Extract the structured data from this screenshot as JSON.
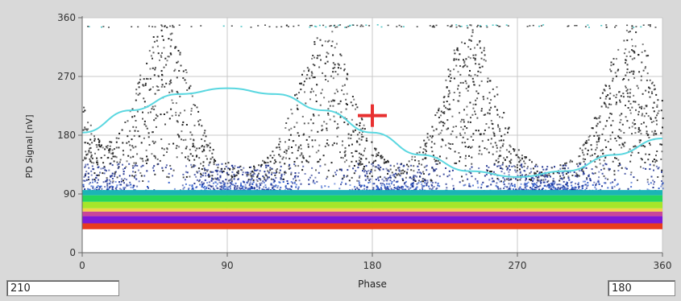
{
  "readouts": {
    "left_value": "210",
    "right_value": "180"
  },
  "colors": {
    "background": "#d9d9d9",
    "plot_background": "#ffffff",
    "grid": "#c8c8c8",
    "axis": "#666666",
    "fit_curve": "#5ad7e0",
    "cursor": "#e83030",
    "density_palette": [
      "#1a1a1a",
      "#1c2f8f",
      "#2c59c9",
      "#1bb5b5",
      "#24d65c",
      "#a6e62a",
      "#f2d24a",
      "#c9469a",
      "#7d18d8",
      "#e83a1f"
    ]
  },
  "chart_data": {
    "type": "heatmap",
    "title": "",
    "xlabel": "Phase",
    "ylabel": "PD Signal [nV]",
    "xlim": [
      0,
      360
    ],
    "ylim": [
      0,
      360
    ],
    "x_ticks": [
      "0",
      "90",
      "180",
      "270",
      "360"
    ],
    "y_ticks": [
      "0",
      "90",
      "180",
      "270",
      "360"
    ],
    "grid": true,
    "bands": [
      {
        "y_min": 36,
        "y_max": 45,
        "color": "#e83a1f"
      },
      {
        "y_min": 45,
        "y_max": 56,
        "color": "#7d18d8"
      },
      {
        "y_min": 56,
        "y_max": 63,
        "color": "#c9469a"
      },
      {
        "y_min": 63,
        "y_max": 68,
        "color": "#f2d24a"
      },
      {
        "y_min": 68,
        "y_max": 78,
        "color": "#a6e62a"
      },
      {
        "y_min": 78,
        "y_max": 88,
        "color": "#24d65c"
      },
      {
        "y_min": 88,
        "y_max": 96,
        "color": "#1bb5b5"
      }
    ],
    "density_peaks_phase": [
      50,
      150,
      240,
      340
    ],
    "fit_curve": {
      "x": [
        0,
        30,
        60,
        90,
        120,
        150,
        180,
        210,
        240,
        270,
        300,
        330,
        360
      ],
      "y": [
        184,
        218,
        243,
        252,
        243,
        218,
        184,
        150,
        125,
        116,
        125,
        150,
        175
      ]
    },
    "cursor": {
      "x": 180,
      "y": 210
    }
  }
}
